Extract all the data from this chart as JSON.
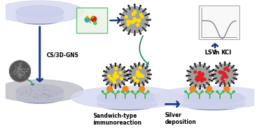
{
  "bg_color": "#ffffff",
  "label1": "CS/3D-GNS",
  "label2": "Sandwich-type\nimmunoreaction",
  "label3": "Silver\ndeposition",
  "label4": "LSV",
  "label5": "In",
  "label6": "KCl",
  "figsize": [
    3.78,
    1.86
  ],
  "dpi": 100,
  "arrow_color": "#1a3a8c",
  "arrow_color2": "#2a8a6a",
  "petri_rim_color": "#9098c8",
  "petri_fill_color": "#c8ccee",
  "petri_inner_color": "#d8daf0",
  "graphene_dark": "#444444",
  "graphene_mid": "#888888",
  "graphene_light": "#bbbbbb",
  "ab_green": "#44bb44",
  "ab_orange": "#ee8822",
  "nano_yellow": "#ffdd00",
  "nano_red": "#dd2222",
  "nano_gray": "#999999",
  "spike_color": "#222222",
  "text_fs": 5.5,
  "lsv_box_color": "#f0f0f0",
  "lsv_line_color": "#888888"
}
